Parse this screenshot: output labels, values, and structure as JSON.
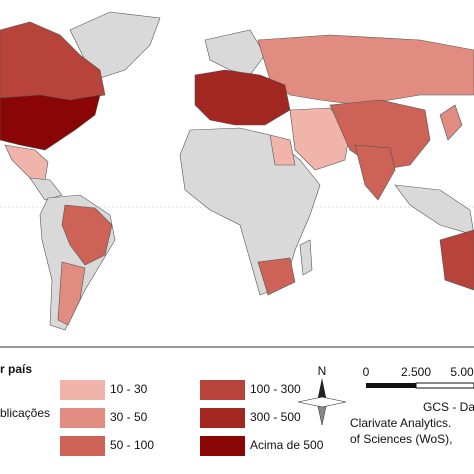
{
  "legend": {
    "title_part1": "r país",
    "title_part2": "blicações",
    "items": [
      {
        "label": "10 - 30",
        "color": "#f0b4ab"
      },
      {
        "label": "30 - 50",
        "color": "#e08c80"
      },
      {
        "label": "50 - 100",
        "color": "#cd6356"
      },
      {
        "label": "100 - 300",
        "color": "#b8433a"
      },
      {
        "label": "300 - 500",
        "color": "#a12720"
      },
      {
        "label": "Acima de 500",
        "color": "#8a0606"
      }
    ]
  },
  "north": "N",
  "scale": {
    "labels": [
      "0",
      "2.500",
      "5.00"
    ]
  },
  "source": {
    "lines": [
      "GCS - Dat",
      "Clarivate Analytics.",
      "of Sciences (WoS),"
    ]
  }
}
